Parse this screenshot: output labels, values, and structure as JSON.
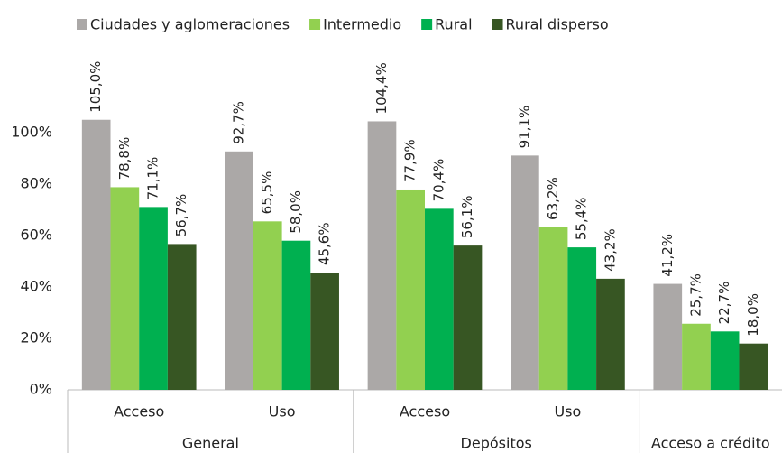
{
  "chart_data": {
    "type": "bar",
    "categories": [
      [
        "General",
        "Acceso"
      ],
      [
        "General",
        "Uso"
      ],
      [
        "Depósitos",
        "Acceso"
      ],
      [
        "Depósitos",
        "Uso"
      ],
      [
        "Acceso a crédito",
        null
      ]
    ],
    "series": [
      {
        "name": "Ciudades y aglomeraciones",
        "color": "#aba8a7",
        "values": [
          105.0,
          92.7,
          104.4,
          91.1,
          41.2
        ],
        "value_labels": [
          "105,0%",
          "92,7%",
          "104,4%",
          "91,1%",
          "41,2%"
        ]
      },
      {
        "name": "Intermedio",
        "color": "#92d050",
        "values": [
          78.8,
          65.5,
          77.9,
          63.2,
          25.7
        ],
        "value_labels": [
          "78,8%",
          "65,5%",
          "77,9%",
          "63,2%",
          "25,7%"
        ]
      },
      {
        "name": "Rural",
        "color": "#00b050",
        "values": [
          71.1,
          58.0,
          70.4,
          55.4,
          22.7
        ],
        "value_labels": [
          "71,1%",
          "58,0%",
          "70,4%",
          "55,4%",
          "22,7%"
        ]
      },
      {
        "name": "Rural disperso",
        "color": "#375623",
        "values": [
          56.7,
          45.6,
          56.1,
          43.2,
          18.0
        ],
        "value_labels": [
          "56,7%",
          "45,6%",
          "56,1%",
          "43,2%",
          "18,0%"
        ]
      }
    ],
    "ylim": [
      0,
      140
    ],
    "yticks": [
      {
        "value": 0,
        "label": "0%"
      },
      {
        "value": 20,
        "label": "20%"
      },
      {
        "value": 40,
        "label": "40%"
      },
      {
        "value": 60,
        "label": "60%"
      },
      {
        "value": 80,
        "label": "80%"
      },
      {
        "value": 100,
        "label": "100%"
      }
    ],
    "grid": false,
    "legend": "top"
  }
}
